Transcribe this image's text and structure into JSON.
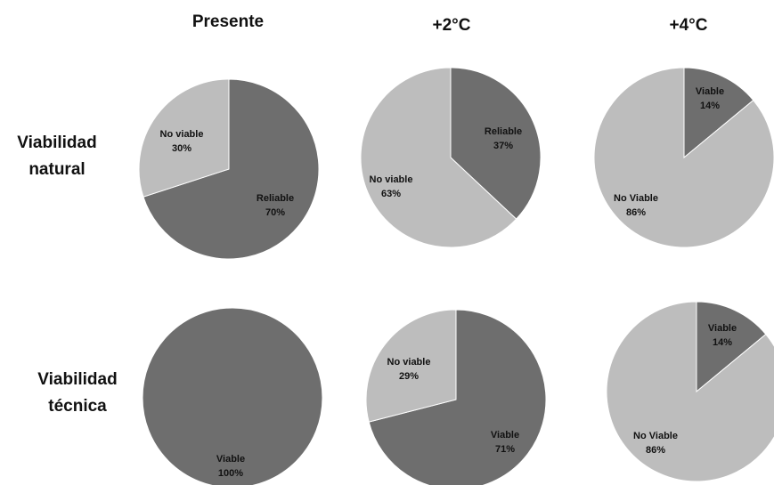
{
  "column_titles": [
    "Presente",
    "+2°C",
    "+4°C"
  ],
  "row_titles": [
    [
      "Viabilidad",
      "natural"
    ],
    [
      "Viabilidad",
      "técnica"
    ]
  ],
  "colors": {
    "dark": "#6e6e6e",
    "light": "#bdbdbd",
    "stroke": "#ffffff"
  },
  "chart_data": [
    {
      "type": "pie",
      "row": "Viabilidad natural",
      "column": "Presente",
      "slices": [
        {
          "label": "Reliable",
          "pct": "70%",
          "value": 70,
          "shade": "dark"
        },
        {
          "label": "No viable",
          "pct": "30%",
          "value": 30,
          "shade": "light"
        }
      ]
    },
    {
      "type": "pie",
      "row": "Viabilidad natural",
      "column": "+2°C",
      "slices": [
        {
          "label": "Reliable",
          "pct": "37%",
          "value": 37,
          "shade": "dark"
        },
        {
          "label": "No viable",
          "pct": "63%",
          "value": 63,
          "shade": "light"
        }
      ]
    },
    {
      "type": "pie",
      "row": "Viabilidad natural",
      "column": "+4°C",
      "slices": [
        {
          "label": "Viable",
          "pct": "14%",
          "value": 14,
          "shade": "dark"
        },
        {
          "label": "No Viable",
          "pct": "86%",
          "value": 86,
          "shade": "light"
        }
      ]
    },
    {
      "type": "pie",
      "row": "Viabilidad técnica",
      "column": "Presente",
      "slices": [
        {
          "label": "Viable",
          "pct": "100%",
          "value": 100,
          "shade": "dark"
        }
      ]
    },
    {
      "type": "pie",
      "row": "Viabilidad técnica",
      "column": "+2°C",
      "slices": [
        {
          "label": "Viable",
          "pct": "71%",
          "value": 71,
          "shade": "dark"
        },
        {
          "label": "No viable",
          "pct": "29%",
          "value": 29,
          "shade": "light"
        }
      ]
    },
    {
      "type": "pie",
      "row": "Viabilidad técnica",
      "column": "+4°C",
      "slices": [
        {
          "label": "Viable",
          "pct": "14%",
          "value": 14,
          "shade": "dark"
        },
        {
          "label": "No Viable",
          "pct": "86%",
          "value": 86,
          "shade": "light"
        }
      ]
    }
  ]
}
